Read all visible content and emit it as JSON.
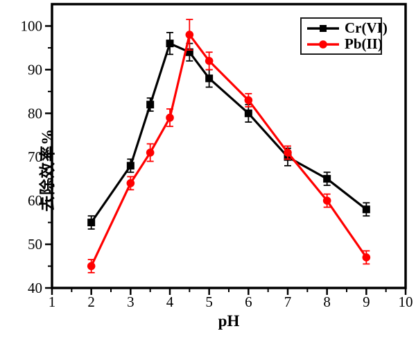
{
  "chart_data": {
    "type": "line",
    "title": "",
    "xlabel": "pH",
    "ylabel": "去除效率%",
    "xlim": [
      1,
      10
    ],
    "ylim": [
      40,
      105
    ],
    "x_major_ticks": [
      1,
      2,
      3,
      4,
      5,
      6,
      7,
      8,
      9,
      10
    ],
    "x_minor_ticks": [
      1.5,
      2.5,
      3.5,
      4.5,
      5.5,
      6.5,
      7.5,
      8.5,
      9.5
    ],
    "y_major_ticks": [
      40,
      50,
      60,
      70,
      80,
      90,
      100
    ],
    "y_minor_ticks": [
      45,
      55,
      65,
      75,
      85,
      95
    ],
    "grid": false,
    "error_bars": true,
    "legend_position": "top-right",
    "frame_color": "#000000",
    "background_color": "#ffffff",
    "series": [
      {
        "name": "Cr(VI)",
        "color": "#000000",
        "marker": "square",
        "x": [
          2,
          3,
          3.5,
          4,
          4.5,
          5,
          6,
          7,
          8,
          9
        ],
        "y": [
          55,
          68,
          82,
          96,
          94,
          88,
          80,
          70,
          65,
          58
        ],
        "yerr": [
          1.5,
          1.5,
          1.5,
          2.5,
          2,
          2,
          2,
          2,
          1.5,
          1.5
        ]
      },
      {
        "name": "Pb(II)",
        "color": "#ff0000",
        "marker": "circle",
        "x": [
          2,
          3,
          3.5,
          4,
          4.5,
          5,
          6,
          7,
          8,
          9
        ],
        "y": [
          45,
          64,
          71,
          79,
          98,
          92,
          83,
          71,
          60,
          47
        ],
        "yerr": [
          1.5,
          1.5,
          2,
          2,
          3.5,
          2,
          1.5,
          1.5,
          1.5,
          1.5
        ]
      }
    ]
  }
}
